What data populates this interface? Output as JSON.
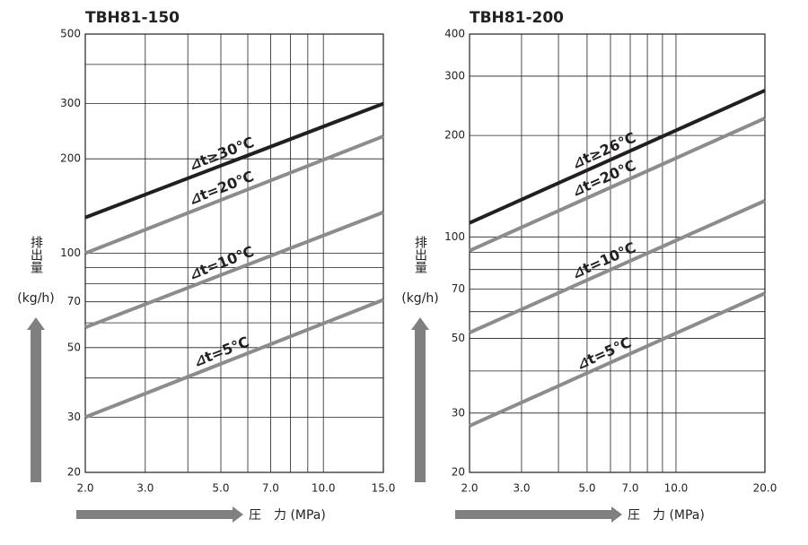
{
  "chart_data": [
    {
      "type": "line",
      "title": "TBH81-150",
      "xlabel": "圧　力 (MPa)",
      "ylabel": "排出量",
      "yunit": "(kg/h)",
      "xscale": "log",
      "yscale": "log",
      "grid": true,
      "xlim": [
        2,
        15
      ],
      "ylim": [
        20,
        500
      ],
      "xticks": [
        {
          "value": 2,
          "label": "2.0"
        },
        {
          "value": 3,
          "label": "3.0"
        },
        {
          "value": 5,
          "label": "5.0"
        },
        {
          "value": 7,
          "label": "7.0"
        },
        {
          "value": 10,
          "label": "10.0"
        },
        {
          "value": 15,
          "label": "15.0"
        }
      ],
      "yticks": [
        20,
        30,
        50,
        70,
        100,
        200,
        300,
        500
      ],
      "xminorgrid": [
        4,
        6,
        8,
        9
      ],
      "yminorgrid": [
        40,
        60,
        80,
        90,
        400
      ],
      "x": [
        2,
        15
      ],
      "series": [
        {
          "name": "⊿t≥30℃",
          "color": "#231f20",
          "values": [
            130,
            300
          ]
        },
        {
          "name": "⊿t=20℃",
          "color": "#8c8c8c",
          "values": [
            100,
            236
          ]
        },
        {
          "name": "⊿t=10℃",
          "color": "#8c8c8c",
          "values": [
            58,
            135
          ]
        },
        {
          "name": "⊿t=5℃",
          "color": "#8c8c8c",
          "values": [
            30,
            71
          ]
        }
      ]
    },
    {
      "type": "line",
      "title": "TBH81-200",
      "xlabel": "圧　力 (MPa)",
      "ylabel": "排出量",
      "yunit": "(kg/h)",
      "xscale": "log",
      "yscale": "log",
      "grid": true,
      "xlim": [
        2,
        20
      ],
      "ylim": [
        20,
        400
      ],
      "xticks": [
        {
          "value": 2,
          "label": "2.0"
        },
        {
          "value": 3,
          "label": "3.0"
        },
        {
          "value": 5,
          "label": "5.0"
        },
        {
          "value": 7,
          "label": "7.0"
        },
        {
          "value": 10,
          "label": "10.0"
        },
        {
          "value": 20,
          "label": "20.0"
        }
      ],
      "yticks": [
        20,
        30,
        50,
        70,
        100,
        200,
        300,
        400
      ],
      "xminorgrid": [
        4,
        6,
        8,
        9
      ],
      "yminorgrid": [
        40,
        60,
        80,
        90
      ],
      "x": [
        2,
        20
      ],
      "series": [
        {
          "name": "⊿t≥26℃",
          "color": "#231f20",
          "values": [
            110,
            272
          ]
        },
        {
          "name": "⊿t=20℃",
          "color": "#8c8c8c",
          "values": [
            91,
            225
          ]
        },
        {
          "name": "⊿t=10℃",
          "color": "#8c8c8c",
          "values": [
            52,
            128
          ]
        },
        {
          "name": "⊿t=5℃",
          "color": "#8c8c8c",
          "values": [
            27.5,
            68
          ]
        }
      ]
    }
  ]
}
